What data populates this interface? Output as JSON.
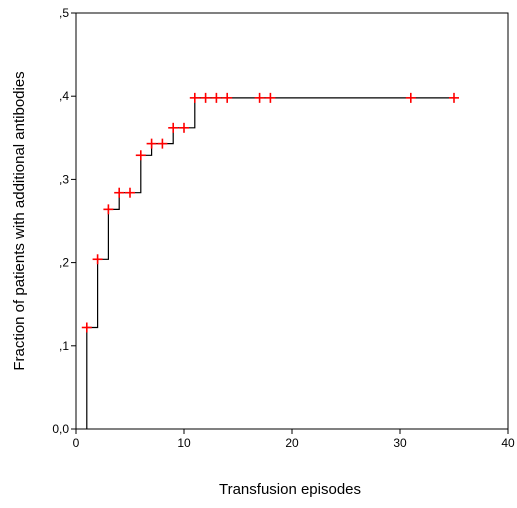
{
  "chart_data": {
    "type": "line",
    "title": "",
    "xlabel": "Transfusion episodes",
    "ylabel": "Fraction of patients with additional antibodies",
    "xlim": [
      0,
      40
    ],
    "ylim": [
      0,
      0.5
    ],
    "x_ticks": [
      "0",
      "10",
      "20",
      "30",
      "40"
    ],
    "y_ticks": [
      "0,0",
      ",1",
      ",2",
      ",3",
      ",4",
      ",5"
    ],
    "grid": false,
    "legend": "none",
    "step_curve": {
      "x": [
        1,
        1,
        2,
        2,
        3,
        3,
        4,
        4,
        6,
        6,
        7,
        7,
        9,
        9,
        11,
        11,
        35
      ],
      "y": [
        0,
        0.122,
        0.122,
        0.204,
        0.204,
        0.264,
        0.264,
        0.284,
        0.284,
        0.329,
        0.329,
        0.343,
        0.343,
        0.362,
        0.362,
        0.398,
        0.398
      ]
    },
    "censored_points": {
      "x": [
        1,
        2,
        3,
        4,
        5,
        6,
        7,
        8,
        9,
        10,
        11,
        12,
        13,
        14,
        17,
        18,
        31,
        35
      ],
      "y": [
        0.122,
        0.204,
        0.264,
        0.284,
        0.284,
        0.329,
        0.343,
        0.343,
        0.362,
        0.362,
        0.398,
        0.398,
        0.398,
        0.398,
        0.398,
        0.398,
        0.398,
        0.398
      ]
    },
    "colors": {
      "line": "#000000",
      "marker": "#ff0000",
      "axis": "#000000"
    }
  }
}
